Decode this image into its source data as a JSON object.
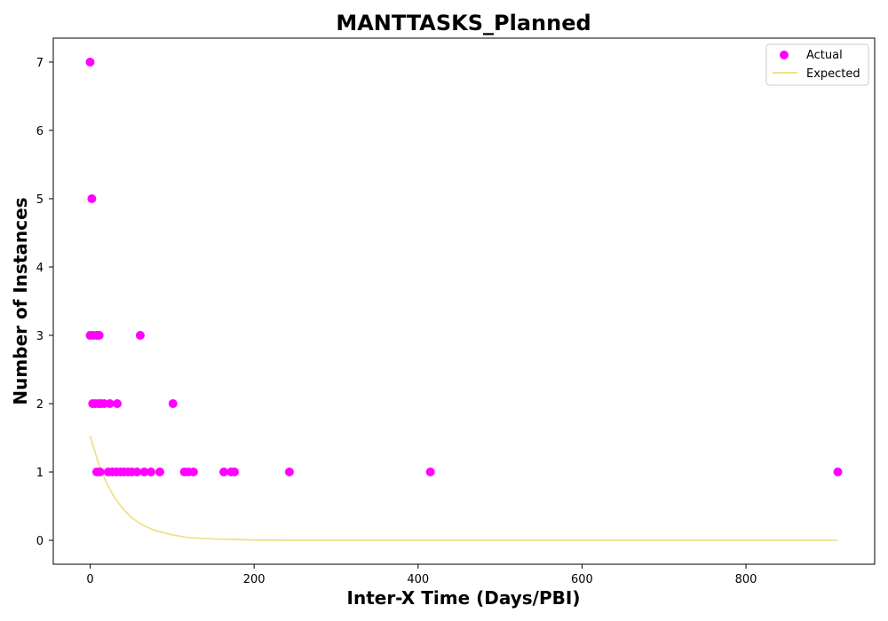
{
  "chart_data": {
    "type": "scatter",
    "title": "MANTTASKS_Planned",
    "xlabel": "Inter-X Time (Days/PBI)",
    "ylabel": "Number of Instances",
    "xlim": [
      -45,
      957
    ],
    "ylim": [
      -0.35,
      7.35
    ],
    "xticks": [
      0,
      200,
      400,
      600,
      800
    ],
    "yticks": [
      0,
      1,
      2,
      3,
      4,
      5,
      6,
      7
    ],
    "grid": false,
    "legend_position": "top-right",
    "colors": {
      "actual": "#ff00ff",
      "expected": "#f0e08a"
    },
    "series": [
      {
        "name": "Actual",
        "kind": "scatter",
        "points": [
          [
            0,
            7
          ],
          [
            2,
            5
          ],
          [
            0,
            3
          ],
          [
            4,
            3
          ],
          [
            8,
            3
          ],
          [
            11,
            3
          ],
          [
            61,
            3
          ],
          [
            3,
            2
          ],
          [
            6,
            2
          ],
          [
            10,
            2
          ],
          [
            13,
            2
          ],
          [
            17,
            2
          ],
          [
            24,
            2
          ],
          [
            33,
            2
          ],
          [
            101,
            2
          ],
          [
            8,
            1
          ],
          [
            12,
            1
          ],
          [
            22,
            1
          ],
          [
            27,
            1
          ],
          [
            32,
            1
          ],
          [
            37,
            1
          ],
          [
            41,
            1
          ],
          [
            46,
            1
          ],
          [
            51,
            1
          ],
          [
            57,
            1
          ],
          [
            66,
            1
          ],
          [
            74,
            1
          ],
          [
            85,
            1
          ],
          [
            115,
            1
          ],
          [
            120,
            1
          ],
          [
            126,
            1
          ],
          [
            163,
            1
          ],
          [
            172,
            1
          ],
          [
            176,
            1
          ],
          [
            243,
            1
          ],
          [
            415,
            1
          ],
          [
            912,
            1
          ]
        ]
      },
      {
        "name": "Expected",
        "kind": "line",
        "points": [
          [
            0,
            1.53
          ],
          [
            10,
            1.13
          ],
          [
            20,
            0.84
          ],
          [
            30,
            0.62
          ],
          [
            40,
            0.46
          ],
          [
            50,
            0.34
          ],
          [
            60,
            0.25
          ],
          [
            70,
            0.19
          ],
          [
            80,
            0.14
          ],
          [
            100,
            0.08
          ],
          [
            120,
            0.04
          ],
          [
            150,
            0.02
          ],
          [
            200,
            0.005
          ],
          [
            250,
            0.001
          ],
          [
            300,
            0.0
          ],
          [
            400,
            0.0
          ],
          [
            600,
            0.0
          ],
          [
            800,
            0.0
          ],
          [
            912,
            0.0
          ]
        ]
      }
    ]
  }
}
